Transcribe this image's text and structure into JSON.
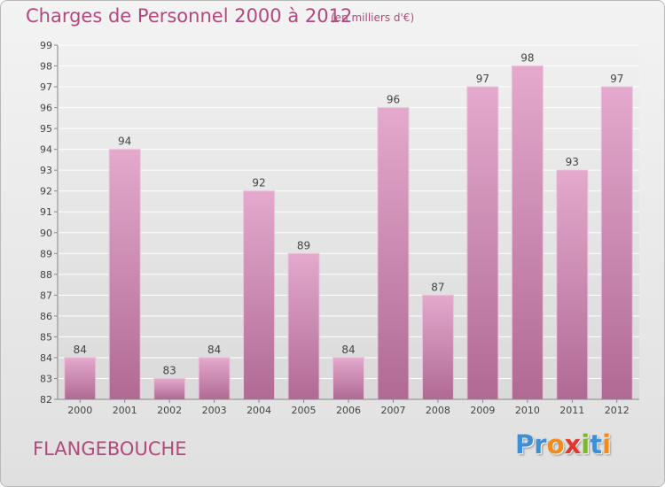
{
  "header": {
    "title": "Charges de Personnel 2000 à 2012",
    "subtitle": "(en milliers d'€)"
  },
  "footer": {
    "place": "FLANGEBOUCHE",
    "logo_letters": [
      "P",
      "r",
      "o",
      "x",
      "i",
      "t",
      "i"
    ]
  },
  "colors": {
    "title": "#b2497c",
    "bar_top": "#e4a9cd",
    "bar_bottom": "#b06a94",
    "logo": [
      "#3f8fd6",
      "#3f8fd6",
      "#f28a1c",
      "#e2352b",
      "#7cb82f",
      "#3f8fd6",
      "#f28a1c"
    ]
  },
  "chart_data": {
    "type": "bar",
    "categories": [
      "2000",
      "2001",
      "2002",
      "2003",
      "2004",
      "2005",
      "2006",
      "2007",
      "2008",
      "2009",
      "2010",
      "2011",
      "2012"
    ],
    "values": [
      84,
      94,
      83,
      84,
      92,
      89,
      84,
      96,
      87,
      97,
      98,
      93,
      97
    ],
    "value_labels": [
      "84",
      "94",
      "83",
      "84",
      "92",
      "89",
      "84",
      "96",
      "87",
      "97",
      "98",
      "93",
      "97"
    ],
    "y_ticks": [
      "82",
      "83",
      "84",
      "85",
      "86",
      "87",
      "88",
      "89",
      "90",
      "91",
      "92",
      "93",
      "94",
      "95",
      "96",
      "97",
      "98",
      "99"
    ],
    "ylim": [
      82,
      99
    ],
    "grid": true,
    "legend": "none"
  }
}
